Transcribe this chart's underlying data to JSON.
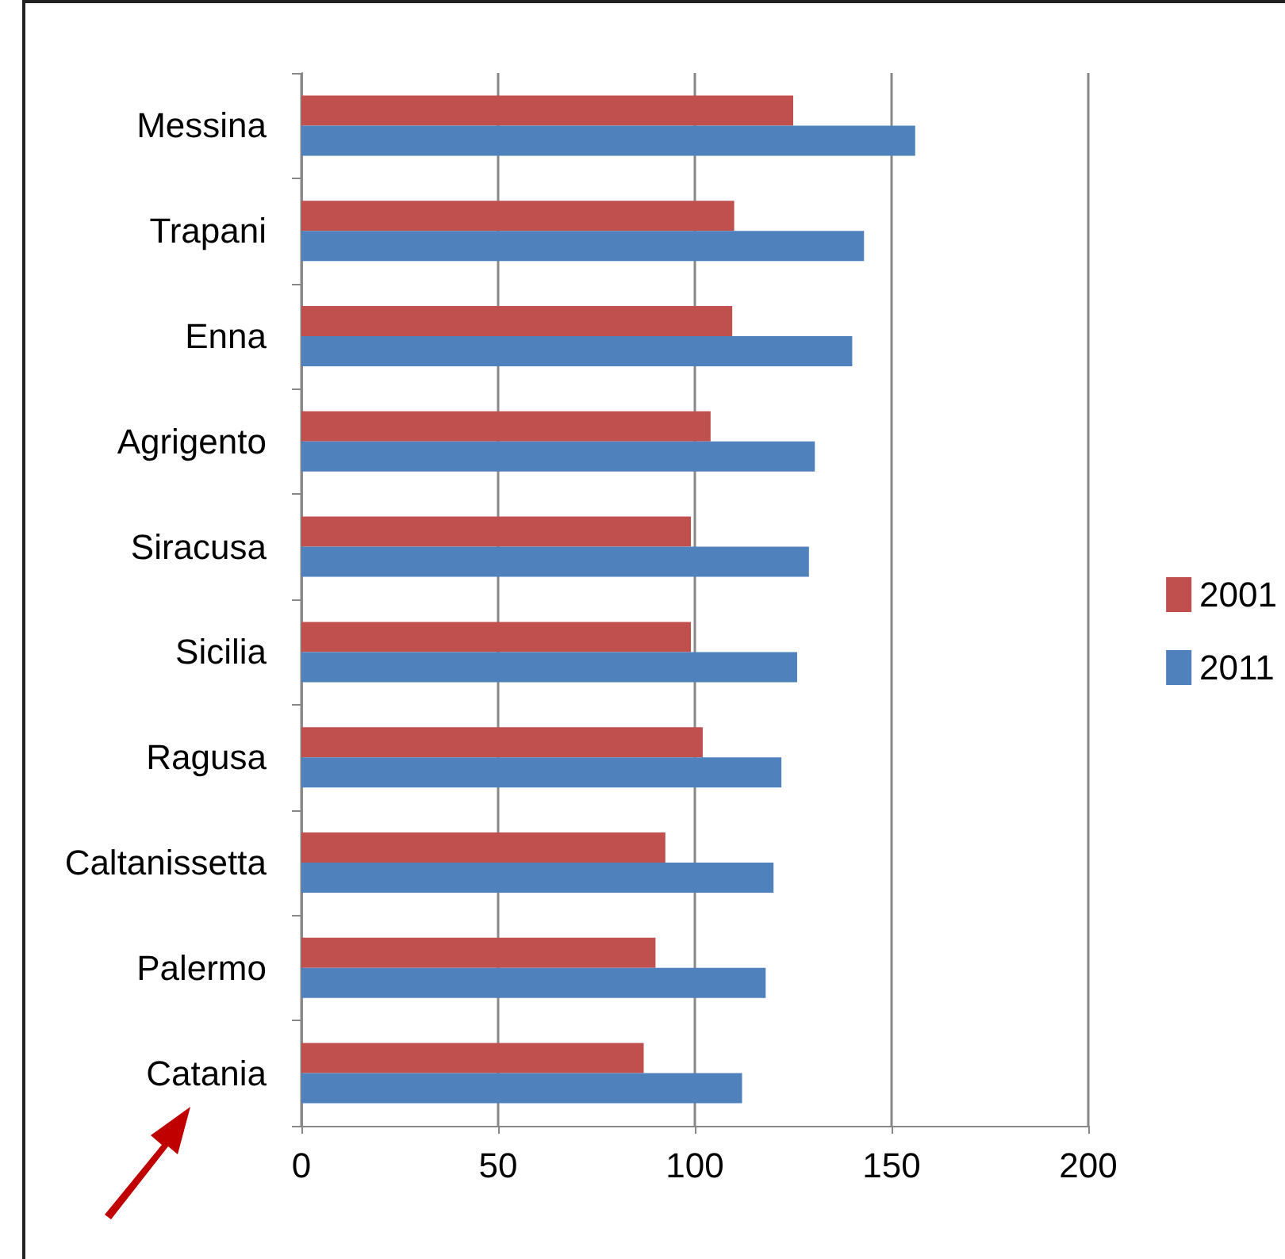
{
  "chart_data": {
    "type": "bar",
    "orientation": "horizontal",
    "categories": [
      "Messina",
      "Trapani",
      "Enna",
      "Agrigento",
      "Siracusa",
      "Sicilia",
      "Ragusa",
      "Caltanissetta",
      "Palermo",
      "Catania"
    ],
    "series": [
      {
        "name": "2001",
        "color": "#c0504d",
        "values": [
          125,
          110,
          109.5,
          104,
          99,
          99,
          102,
          92.5,
          90,
          87
        ]
      },
      {
        "name": "2011",
        "color": "#4f81bd",
        "values": [
          156,
          143,
          140,
          130.5,
          129,
          126,
          122,
          120,
          118,
          112
        ]
      }
    ],
    "xlim": [
      0,
      200
    ],
    "xticks": [
      0,
      50,
      100,
      150,
      200
    ],
    "grid": "x",
    "legend": "right"
  }
}
